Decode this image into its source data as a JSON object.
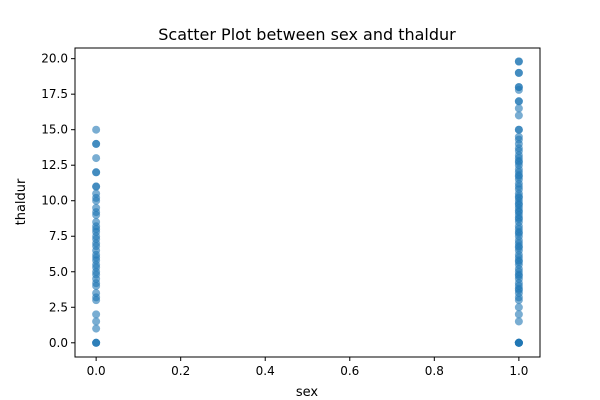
{
  "chart_data": {
    "type": "scatter",
    "title": "Scatter Plot between sex and thaldur",
    "xlabel": "sex",
    "ylabel": "thaldur",
    "xlim": [
      -0.05,
      1.05
    ],
    "ylim": [
      -1.0,
      20.75
    ],
    "grid": false,
    "legend": "none",
    "x_ticks": [
      0.0,
      0.2,
      0.4,
      0.6,
      0.8,
      1.0
    ],
    "x_tick_labels": [
      "0.0",
      "0.2",
      "0.4",
      "0.6",
      "0.8",
      "1.0"
    ],
    "y_ticks": [
      0.0,
      2.5,
      5.0,
      7.5,
      10.0,
      12.5,
      15.0,
      17.5,
      20.0
    ],
    "y_tick_labels": [
      "0.0",
      "2.5",
      "5.0",
      "7.5",
      "10.0",
      "12.5",
      "15.0",
      "17.5",
      "20.0"
    ],
    "marker_color": "#1f77b4",
    "marker_alpha": 0.6,
    "series": [
      {
        "x": [
          0,
          0,
          0,
          0,
          0,
          0,
          0,
          0,
          0,
          0,
          0,
          0,
          0,
          0,
          0,
          0,
          0,
          0,
          0,
          0,
          0,
          0,
          0,
          0,
          0,
          0,
          0,
          0,
          0,
          0,
          0,
          0,
          0,
          0,
          0,
          0,
          0,
          0,
          0,
          0,
          0,
          0
        ],
        "y": [
          0,
          0,
          0,
          1,
          1.5,
          2,
          3,
          3.2,
          3.5,
          4,
          4.2,
          4.5,
          5,
          5.3,
          5.5,
          6,
          6.2,
          6.5,
          7,
          7.3,
          7.5,
          8,
          8.2,
          8.5,
          9,
          9.2,
          9.5,
          10,
          10.2,
          10.5,
          11,
          11,
          12,
          12,
          13,
          14,
          14,
          15,
          7.8,
          6.8,
          5.8,
          4.8
        ]
      },
      {
        "x": [
          1,
          1,
          1,
          1,
          1,
          1,
          1,
          1,
          1,
          1,
          1,
          1,
          1,
          1,
          1,
          1,
          1,
          1,
          1,
          1,
          1,
          1,
          1,
          1,
          1,
          1,
          1,
          1,
          1,
          1,
          1,
          1,
          1,
          1,
          1,
          1,
          1,
          1,
          1,
          1,
          1,
          1,
          1,
          1,
          1,
          1,
          1,
          1,
          1,
          1,
          1,
          1,
          1,
          1,
          1,
          1,
          1,
          1,
          1,
          1,
          1,
          1,
          1,
          1,
          1,
          1,
          1,
          1,
          1,
          1,
          1,
          1,
          1,
          1,
          1,
          1,
          1,
          1,
          1,
          1
        ],
        "y": [
          0,
          0,
          0,
          0,
          0,
          1.5,
          2,
          2.5,
          3,
          3.2,
          3.5,
          3.8,
          4,
          4.2,
          4.5,
          4.8,
          5,
          5.2,
          5.5,
          5.8,
          6,
          6.2,
          6.5,
          6.8,
          7,
          7.2,
          7.5,
          7.8,
          8,
          8.2,
          8.5,
          8.8,
          9,
          9.2,
          9.5,
          9.8,
          10,
          10.2,
          10.5,
          10.8,
          11,
          11.2,
          11.5,
          11.8,
          12,
          12.2,
          12.5,
          12.8,
          13,
          13.2,
          13.5,
          14,
          14.3,
          14.5,
          15,
          15,
          16,
          16.5,
          17,
          17,
          17.8,
          18,
          18,
          19,
          19,
          19.8,
          19.8,
          9.7,
          8.7,
          7.7,
          6.7,
          5.7,
          4.7,
          3.7,
          11.7,
          12.7,
          13.7,
          10.3,
          9.3,
          0
        ]
      }
    ]
  }
}
